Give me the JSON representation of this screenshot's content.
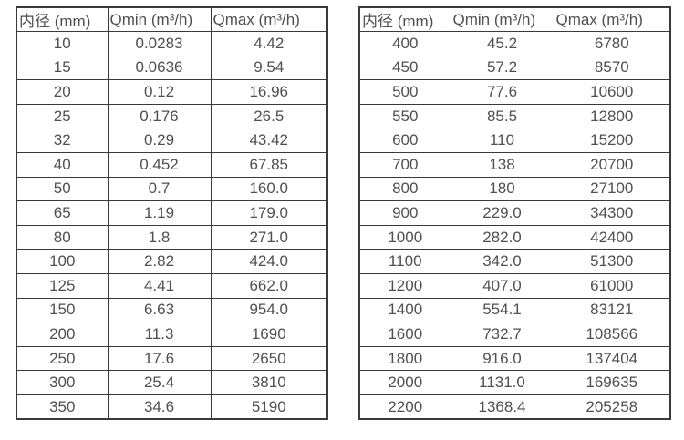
{
  "colors": {
    "border": "#3a3a3a",
    "text": "#505054",
    "background": "#ffffff"
  },
  "chart_data": [
    {
      "type": "table",
      "name": "flow-rate-table-small-diameters",
      "columns": [
        "内径 (mm)",
        "Qmin (m³/h)",
        "Qmax (m³/h)"
      ],
      "rows": [
        [
          "10",
          "0.0283",
          "4.42"
        ],
        [
          "15",
          "0.0636",
          "9.54"
        ],
        [
          "20",
          "0.12",
          "16.96"
        ],
        [
          "25",
          "0.176",
          "26.5"
        ],
        [
          "32",
          "0.29",
          "43.42"
        ],
        [
          "40",
          "0.452",
          "67.85"
        ],
        [
          "50",
          "0.7",
          "160.0"
        ],
        [
          "65",
          "1.19",
          "179.0"
        ],
        [
          "80",
          "1.8",
          "271.0"
        ],
        [
          "100",
          "2.82",
          "424.0"
        ],
        [
          "125",
          "4.41",
          "662.0"
        ],
        [
          "150",
          "6.63",
          "954.0"
        ],
        [
          "200",
          "11.3",
          "1690"
        ],
        [
          "250",
          "17.6",
          "2650"
        ],
        [
          "300",
          "25.4",
          "3810"
        ],
        [
          "350",
          "34.6",
          "5190"
        ]
      ]
    },
    {
      "type": "table",
      "name": "flow-rate-table-large-diameters",
      "columns": [
        "内径 (mm)",
        "Qmin (m³/h)",
        "Qmax (m³/h)"
      ],
      "rows": [
        [
          "400",
          "45.2",
          "6780"
        ],
        [
          "450",
          "57.2",
          "8570"
        ],
        [
          "500",
          "77.6",
          "10600"
        ],
        [
          "550",
          "85.5",
          "12800"
        ],
        [
          "600",
          "110",
          "15200"
        ],
        [
          "700",
          "138",
          "20700"
        ],
        [
          "800",
          "180",
          "27100"
        ],
        [
          "900",
          "229.0",
          "34300"
        ],
        [
          "1000",
          "282.0",
          "42400"
        ],
        [
          "1100",
          "342.0",
          "51300"
        ],
        [
          "1200",
          "407.0",
          "61000"
        ],
        [
          "1400",
          "554.1",
          "83121"
        ],
        [
          "1600",
          "732.7",
          "108566"
        ],
        [
          "1800",
          "916.0",
          "137404"
        ],
        [
          "2000",
          "1131.0",
          "169635"
        ],
        [
          "2200",
          "1368.4",
          "205258"
        ]
      ]
    }
  ]
}
